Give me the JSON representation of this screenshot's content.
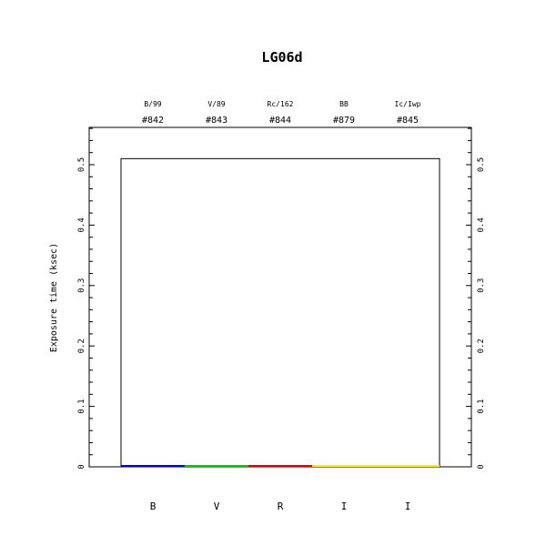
{
  "chart_data": {
    "type": "bar",
    "title": "LG06d",
    "xlabel": "",
    "ylabel": "Exposure time (ksec)",
    "ylim": [
      0,
      0.5617
    ],
    "yticks": [
      "0",
      "0.1",
      "0.2",
      "0.3",
      "0.4",
      "0.5"
    ],
    "grid": false,
    "categories": [
      "B",
      "V",
      "R",
      "I",
      "I"
    ],
    "filter_names": [
      "B/99",
      "V/89",
      "Rc/162",
      "BB",
      "Ic/Iwp"
    ],
    "filter_ids": [
      "#842",
      "#843",
      "#844",
      "#879",
      "#845"
    ],
    "series": [
      {
        "values": [
          0,
          0,
          0,
          0,
          0
        ],
        "colors": [
          "#0000cc",
          "#00cc00",
          "#dd0000",
          "#ffee00",
          "#ffee00"
        ]
      }
    ],
    "total_outline": 0.51
  }
}
